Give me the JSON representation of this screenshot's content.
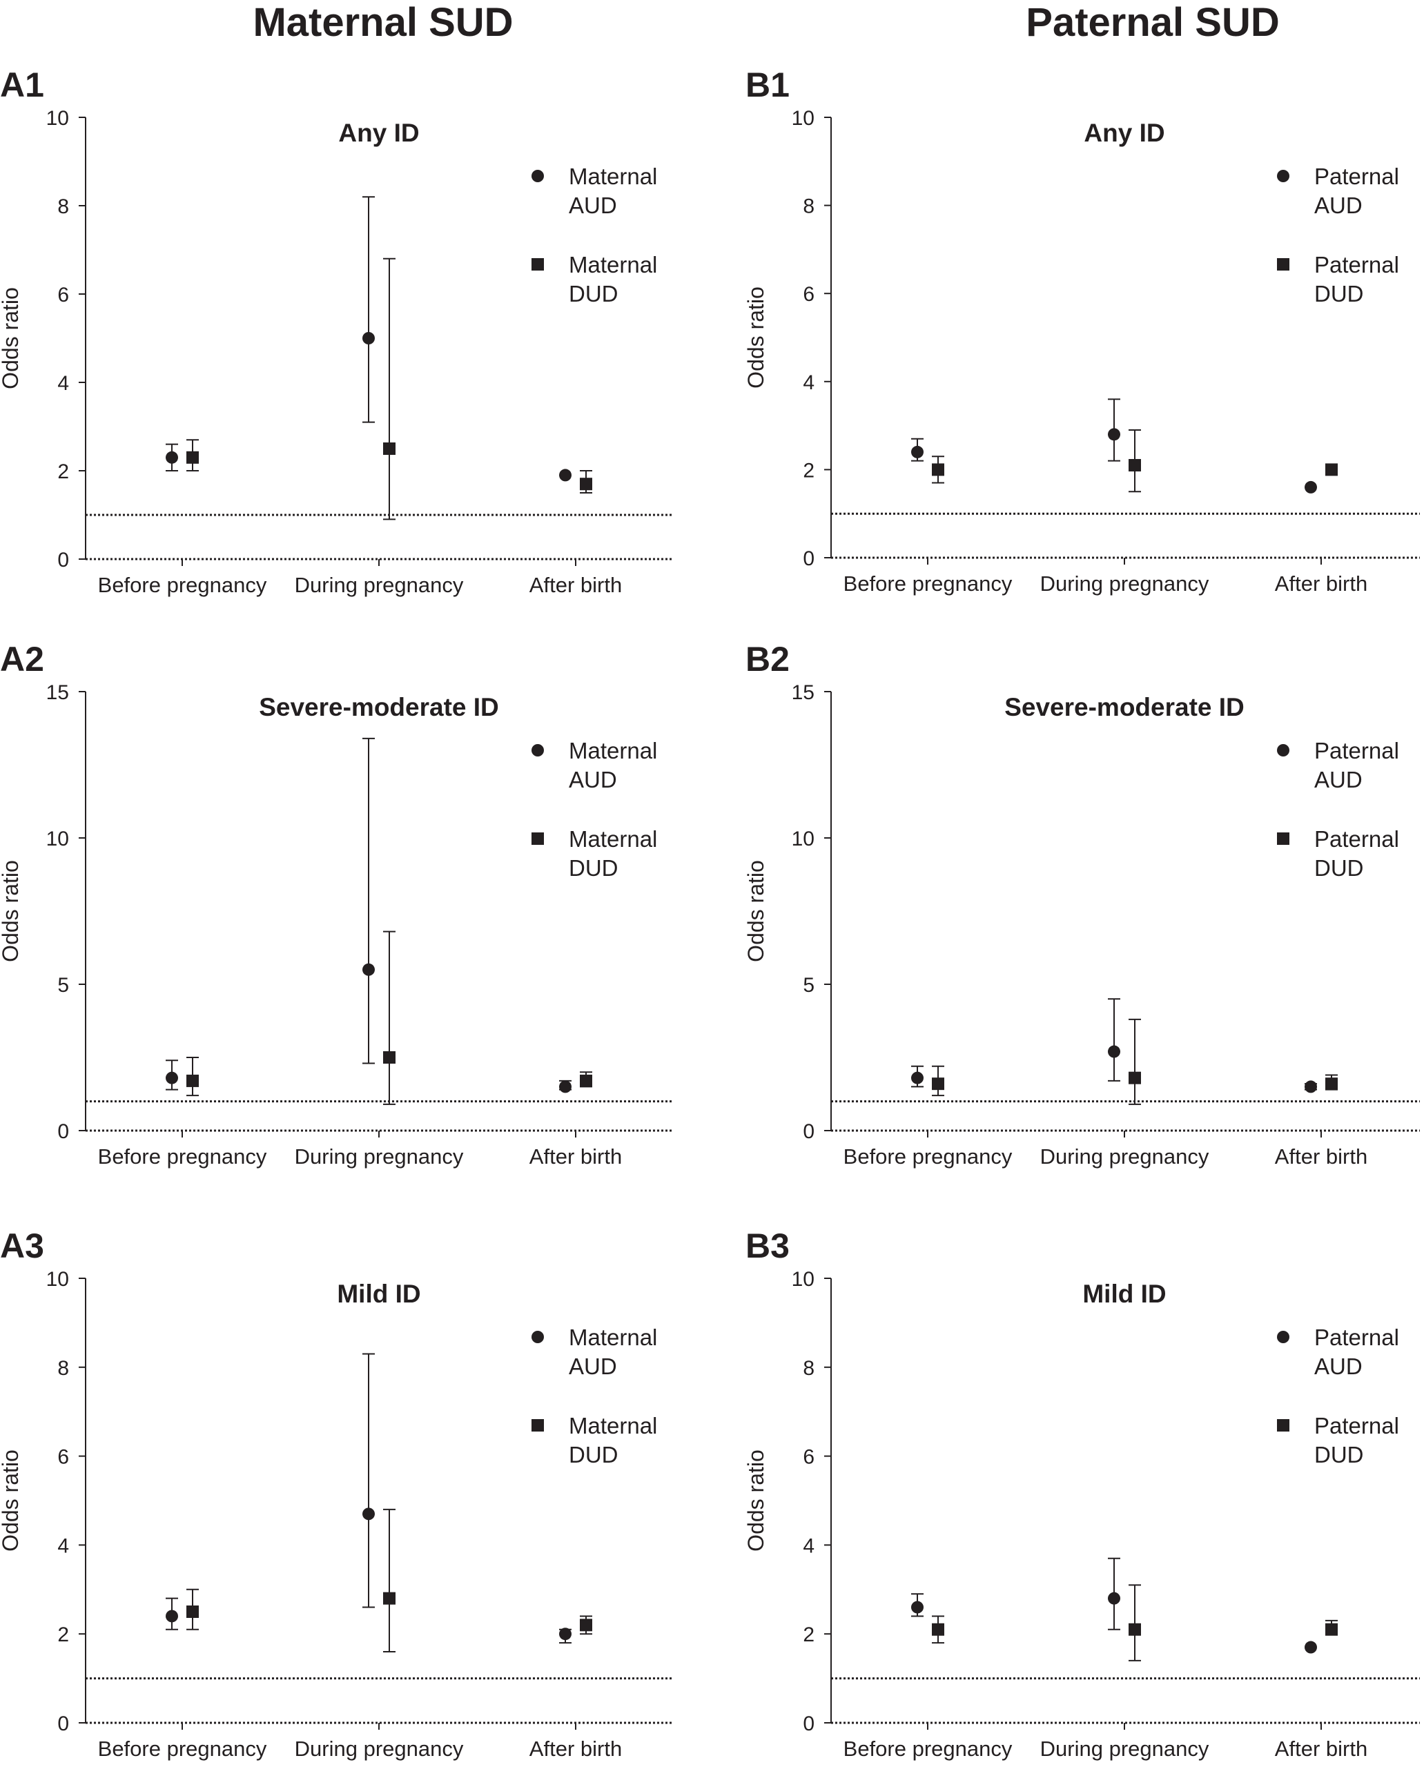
{
  "headers": {
    "left": "Maternal SUD",
    "right": "Paternal SUD"
  },
  "colors": {
    "ink": "#231f20"
  },
  "chart_data": [
    {
      "panel": "A1",
      "type": "scatter",
      "title": "Any ID",
      "ylabel": "Odds ratio",
      "xlabel": "",
      "categories": [
        "Before pregnancy",
        "During pregnancy",
        "After birth"
      ],
      "ylim": [
        0,
        10
      ],
      "yticks": [
        0,
        2,
        4,
        6,
        8,
        10
      ],
      "reference_line": 1,
      "legend": "top-right",
      "series": [
        {
          "name": "Maternal AUD",
          "marker": "circle",
          "values": [
            2.3,
            5.0,
            1.9
          ],
          "ci_low": [
            2.0,
            3.1,
            1.9
          ],
          "ci_high": [
            2.6,
            8.2,
            1.9
          ]
        },
        {
          "name": "Maternal DUD",
          "marker": "square",
          "values": [
            2.3,
            2.5,
            1.7
          ],
          "ci_low": [
            2.0,
            0.9,
            1.5
          ],
          "ci_high": [
            2.7,
            6.8,
            2.0
          ]
        }
      ]
    },
    {
      "panel": "B1",
      "type": "scatter",
      "title": "Any ID",
      "ylabel": "Odds ratio",
      "xlabel": "",
      "categories": [
        "Before pregnancy",
        "During pregnancy",
        "After birth"
      ],
      "ylim": [
        0,
        10
      ],
      "yticks": [
        0,
        2,
        4,
        6,
        8,
        10
      ],
      "reference_line": 1,
      "legend": "top-right",
      "series": [
        {
          "name": "Paternal AUD",
          "marker": "circle",
          "values": [
            2.4,
            2.8,
            1.6
          ],
          "ci_low": [
            2.2,
            2.2,
            1.6
          ],
          "ci_high": [
            2.7,
            3.6,
            1.6
          ]
        },
        {
          "name": "Paternal DUD",
          "marker": "square",
          "values": [
            2.0,
            2.1,
            2.0
          ],
          "ci_low": [
            1.7,
            1.5,
            2.0
          ],
          "ci_high": [
            2.3,
            2.9,
            2.0
          ]
        }
      ]
    },
    {
      "panel": "A2",
      "type": "scatter",
      "title": "Severe-moderate ID",
      "ylabel": "Odds ratio",
      "xlabel": "",
      "categories": [
        "Before pregnancy",
        "During pregnancy",
        "After birth"
      ],
      "ylim": [
        0,
        15
      ],
      "yticks": [
        0,
        5,
        10,
        15
      ],
      "reference_line": 1,
      "legend": "top-right",
      "series": [
        {
          "name": "Maternal AUD",
          "marker": "circle",
          "values": [
            1.8,
            5.5,
            1.5
          ],
          "ci_low": [
            1.4,
            2.3,
            1.4
          ],
          "ci_high": [
            2.4,
            13.4,
            1.7
          ]
        },
        {
          "name": "Maternal DUD",
          "marker": "square",
          "values": [
            1.7,
            2.5,
            1.7
          ],
          "ci_low": [
            1.2,
            0.9,
            1.5
          ],
          "ci_high": [
            2.5,
            6.8,
            2.0
          ]
        }
      ]
    },
    {
      "panel": "B2",
      "type": "scatter",
      "title": "Severe-moderate ID",
      "ylabel": "Odds ratio",
      "xlabel": "",
      "categories": [
        "Before pregnancy",
        "During pregnancy",
        "After birth"
      ],
      "ylim": [
        0,
        15
      ],
      "yticks": [
        0,
        5,
        10,
        15
      ],
      "reference_line": 1,
      "legend": "top-right",
      "series": [
        {
          "name": "Paternal AUD",
          "marker": "circle",
          "values": [
            1.8,
            2.7,
            1.5
          ],
          "ci_low": [
            1.5,
            1.7,
            1.4
          ],
          "ci_high": [
            2.2,
            4.5,
            1.6
          ]
        },
        {
          "name": "Paternal DUD",
          "marker": "square",
          "values": [
            1.6,
            1.8,
            1.6
          ],
          "ci_low": [
            1.2,
            0.9,
            1.4
          ],
          "ci_high": [
            2.2,
            3.8,
            1.9
          ]
        }
      ]
    },
    {
      "panel": "A3",
      "type": "scatter",
      "title": "Mild ID",
      "ylabel": "Odds ratio",
      "xlabel": "",
      "categories": [
        "Before pregnancy",
        "During pregnancy",
        "After birth"
      ],
      "ylim": [
        0,
        10
      ],
      "yticks": [
        0,
        2,
        4,
        6,
        8,
        10
      ],
      "reference_line": 1,
      "legend": "top-right",
      "series": [
        {
          "name": "Maternal AUD",
          "marker": "circle",
          "values": [
            2.4,
            4.7,
            2.0
          ],
          "ci_low": [
            2.1,
            2.6,
            1.8
          ],
          "ci_high": [
            2.8,
            8.3,
            2.1
          ]
        },
        {
          "name": "Maternal DUD",
          "marker": "square",
          "values": [
            2.5,
            2.8,
            2.2
          ],
          "ci_low": [
            2.1,
            1.6,
            2.0
          ],
          "ci_high": [
            3.0,
            4.8,
            2.4
          ]
        }
      ]
    },
    {
      "panel": "B3",
      "type": "scatter",
      "title": "Mild ID",
      "ylabel": "Odds ratio",
      "xlabel": "",
      "categories": [
        "Before pregnancy",
        "During pregnancy",
        "After birth"
      ],
      "ylim": [
        0,
        10
      ],
      "yticks": [
        0,
        2,
        4,
        6,
        8,
        10
      ],
      "reference_line": 1,
      "legend": "top-right",
      "series": [
        {
          "name": "Paternal AUD",
          "marker": "circle",
          "values": [
            2.6,
            2.8,
            1.7
          ],
          "ci_low": [
            2.4,
            2.1,
            1.7
          ],
          "ci_high": [
            2.9,
            3.7,
            1.7
          ]
        },
        {
          "name": "Paternal DUD",
          "marker": "square",
          "values": [
            2.1,
            2.1,
            2.1
          ],
          "ci_low": [
            1.8,
            1.4,
            2.0
          ],
          "ci_high": [
            2.4,
            3.1,
            2.3
          ]
        }
      ]
    }
  ]
}
